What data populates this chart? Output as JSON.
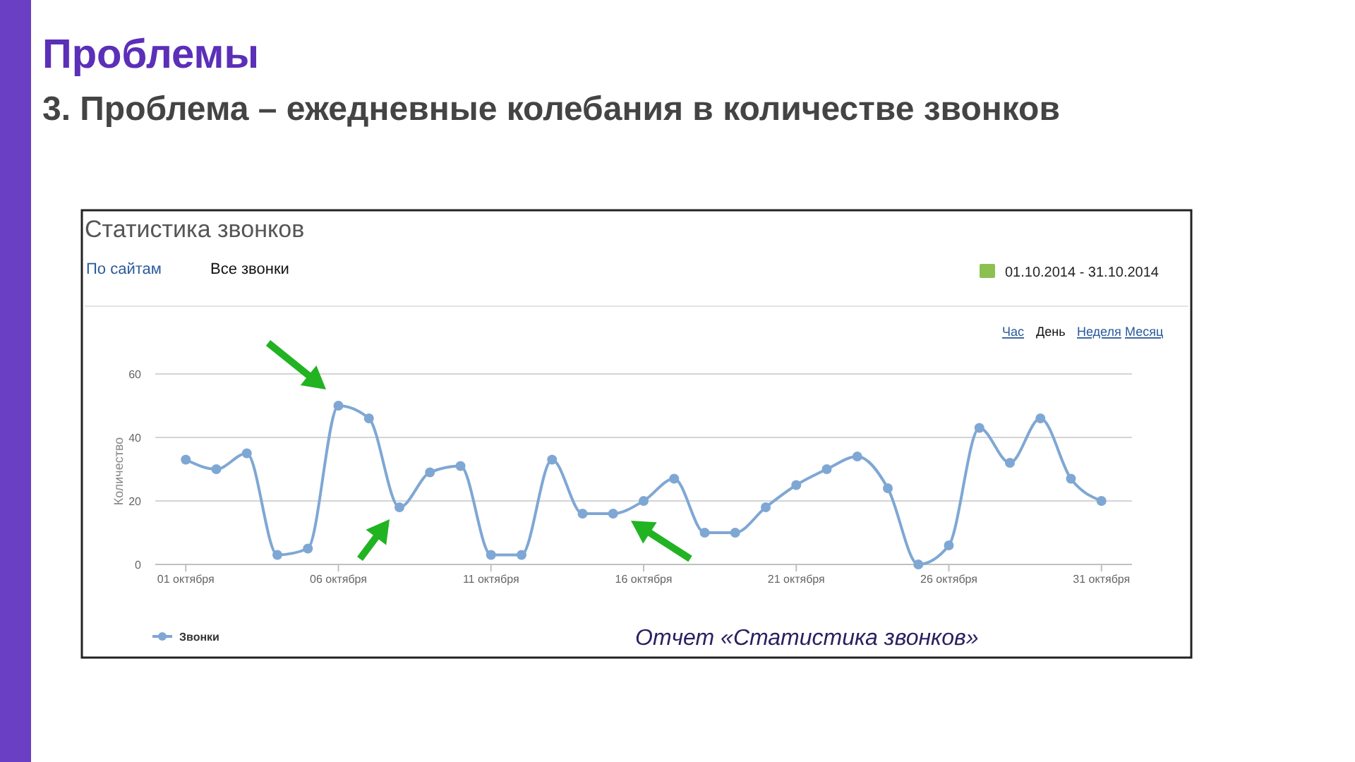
{
  "chart_data": {
    "type": "line",
    "title": "Проблемы",
    "subtitle": "3. Проблема – ежедневные колебания в количестве звонков",
    "annotations": [
      "Статистика звонков",
      "По сайтам",
      "Все звонки",
      "01.10.2014 - 31.10.2014",
      "Час",
      "День",
      "Неделя",
      "Месяц",
      "Отчет «Статистика звонков»"
    ],
    "ylabel": "Количество",
    "x": [
      "2014-10-01",
      "2014-10-02",
      "2014-10-03",
      "2014-10-04",
      "2014-10-05",
      "2014-10-06",
      "2014-10-07",
      "2014-10-08",
      "2014-10-09",
      "2014-10-10",
      "2014-10-11",
      "2014-10-12",
      "2014-10-13",
      "2014-10-14",
      "2014-10-15",
      "2014-10-16",
      "2014-10-17",
      "2014-10-18",
      "2014-10-19",
      "2014-10-20",
      "2014-10-21",
      "2014-10-22",
      "2014-10-23",
      "2014-10-24",
      "2014-10-25",
      "2014-10-26",
      "2014-10-27",
      "2014-10-28",
      "2014-10-29",
      "2014-10-30",
      "2014-10-31"
    ],
    "series": [
      {
        "name": "Звонки",
        "color": "#7fa7d4",
        "values": [
          33,
          30,
          35,
          3,
          5,
          50,
          46,
          18,
          29,
          31,
          3,
          3,
          33,
          16,
          16,
          20,
          27,
          10,
          10,
          18,
          25,
          30,
          34,
          24,
          0,
          6,
          43,
          32,
          46,
          27,
          20
        ]
      }
    ],
    "xlim": [
      "2014-09-30",
      "2014-11-01"
    ],
    "xticks": [
      {
        "value": "2014-10-01",
        "label": "01 октября"
      },
      {
        "value": "2014-10-06",
        "label": "06 октября"
      },
      {
        "value": "2014-10-11",
        "label": "11 октября"
      },
      {
        "value": "2014-10-16",
        "label": "16 октября"
      },
      {
        "value": "2014-10-21",
        "label": "21 октября"
      },
      {
        "value": "2014-10-26",
        "label": "26 октября"
      },
      {
        "value": "2014-10-31",
        "label": "31 октября"
      }
    ],
    "ylim": [
      0,
      60
    ],
    "yticks": [
      0,
      20,
      40,
      60
    ],
    "grid": "y",
    "legend": "bottom left",
    "marker": "circle",
    "line_style": "solid"
  }
}
